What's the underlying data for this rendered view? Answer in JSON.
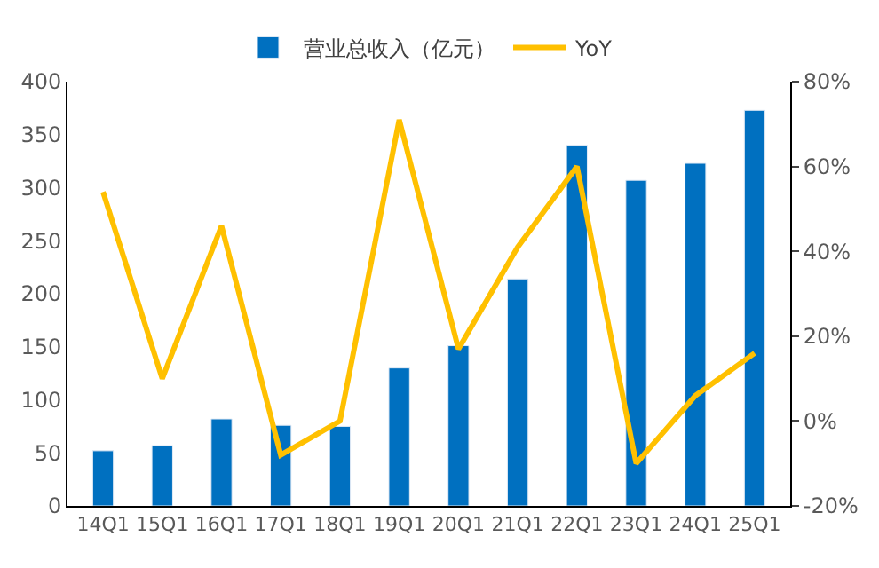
{
  "chart_data": {
    "type": "bar",
    "categories": [
      "14Q1",
      "15Q1",
      "16Q1",
      "17Q1",
      "18Q1",
      "19Q1",
      "20Q1",
      "21Q1",
      "22Q1",
      "23Q1",
      "24Q1",
      "25Q1"
    ],
    "series": [
      {
        "name": "营业总收入（亿元）",
        "color": "#0070c0",
        "values": [
          52,
          57,
          82,
          76,
          75,
          130,
          151,
          214,
          340,
          307,
          323,
          373
        ]
      },
      {
        "name": "YoY",
        "color": "#ffc000",
        "type": "line",
        "axis": "y2",
        "values": [
          54,
          10,
          46,
          -8,
          0,
          71,
          17,
          41,
          60,
          -10,
          6,
          16
        ]
      }
    ],
    "ylim": [
      0,
      400
    ],
    "yticks": [
      0,
      50,
      100,
      150,
      200,
      250,
      300,
      350,
      400
    ],
    "y2lim": [
      -20,
      80
    ],
    "y2ticks": [
      {
        "value": -20,
        "label": "-20%"
      },
      {
        "value": 0,
        "label": "0%"
      },
      {
        "value": 20,
        "label": "20%"
      },
      {
        "value": 40,
        "label": "40%"
      },
      {
        "value": 60,
        "label": "60%"
      },
      {
        "value": 80,
        "label": "80%"
      }
    ],
    "legend": "top",
    "marker": "none",
    "line_style": "solid"
  }
}
